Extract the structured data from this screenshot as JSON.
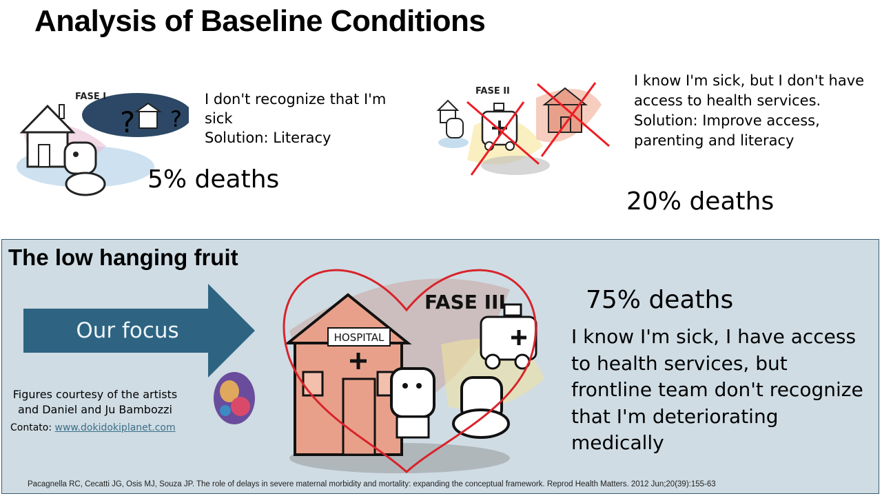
{
  "slide": {
    "title": "Analysis of Baseline Conditions"
  },
  "phase1": {
    "label": "FASE I",
    "text": "I don't recognize that I'm sick\nSolution: Literacy",
    "line1": "I don't recognize that I'm",
    "line2": "sick",
    "line3": "Solution: Literacy",
    "deaths": "5% deaths"
  },
  "phase2": {
    "label": "FASE II",
    "line1": "I know I'm sick, but I don't have",
    "line2": "access to health services.",
    "line3": "Solution: Improve access,",
    "line4": "parenting and literacy",
    "deaths": "20% deaths"
  },
  "phase3": {
    "panel_title": "The low hanging fruit",
    "arrow_label": "Our focus",
    "label": "FASE III",
    "hospital_sign": "HOSPITAL",
    "deaths": "75% deaths",
    "line1": "I know I'm sick, I have access",
    "line2": "to health services, but",
    "line3": "frontline team don't recognize",
    "line4": "that I'm deteriorating",
    "line5": "medically"
  },
  "credits": {
    "line1": "Figures courtesy of the artists",
    "line2": "and Daniel and Ju Bambozzi",
    "contact_label": "Contato:",
    "contact_link": "www.dokidokiplanet.com"
  },
  "reference": "Pacagnella RC, Cecatti JG, Osis MJ, Souza JP. The role of delays in severe maternal morbidity and mortality: expanding the conceptual framework. Reprod Health Matters. 2012 Jun;20(39):155-63",
  "colors": {
    "arrow": "#2e6482",
    "panel_bg": "#cfdce4",
    "heart": "#d8232a",
    "cross": "#ee1c24",
    "hospital": "#e8a08a"
  }
}
